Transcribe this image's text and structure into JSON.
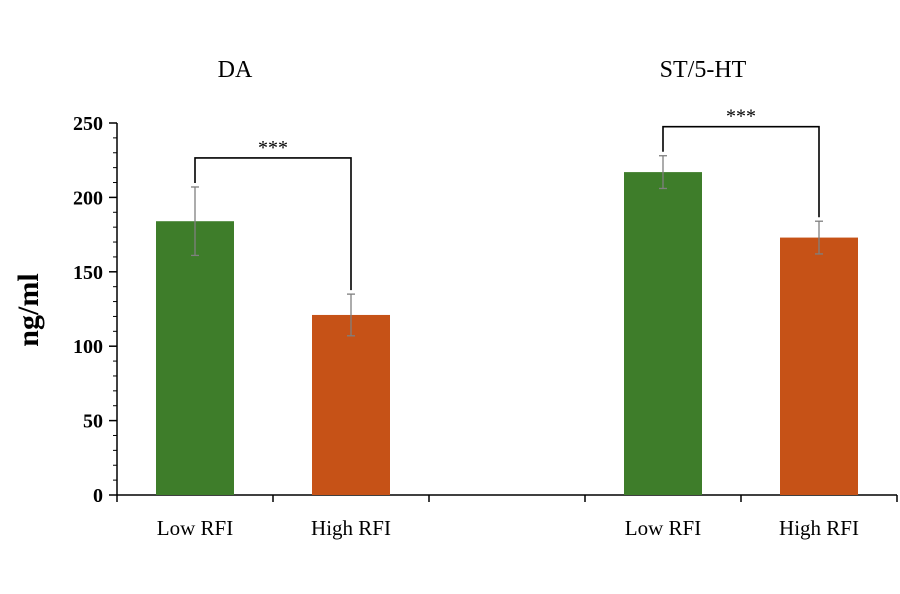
{
  "chart_data": {
    "type": "bar",
    "ylabel": "ng/ml",
    "ylim": [
      0,
      250
    ],
    "yticks": [
      0,
      50,
      100,
      150,
      200,
      250
    ],
    "grid": false,
    "colors": {
      "low": "#3e7d2a",
      "high": "#c65217",
      "errorbar": "#7f7f7f",
      "axis": "#000000"
    },
    "groups": [
      {
        "title": "DA",
        "significance": "***",
        "bars": [
          {
            "category": "Low RFI",
            "value": 184,
            "error": 23,
            "color_key": "low"
          },
          {
            "category": "High RFI",
            "value": 121,
            "error": 14,
            "color_key": "high"
          }
        ]
      },
      {
        "title": "ST/5-HT",
        "significance": "***",
        "bars": [
          {
            "category": "Low RFI",
            "value": 217,
            "error": 11,
            "color_key": "low"
          },
          {
            "category": "High RFI",
            "value": 173,
            "error": 11,
            "color_key": "high"
          }
        ]
      }
    ]
  }
}
